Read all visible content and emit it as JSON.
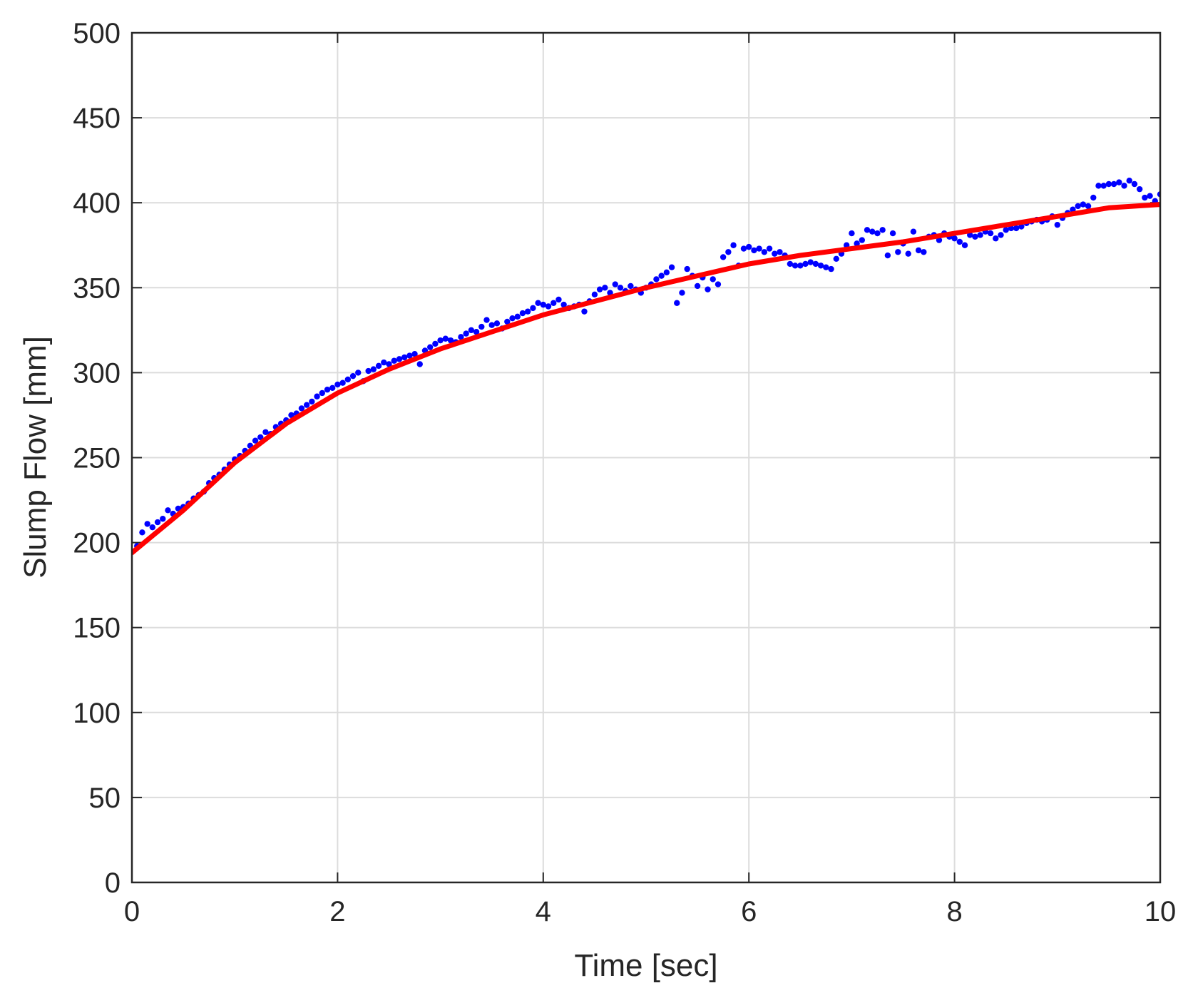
{
  "chart_data": {
    "type": "scatter",
    "title": "",
    "xlabel": "Time [sec]",
    "ylabel": "Slump Flow  [mm]",
    "xlim": [
      0,
      10
    ],
    "ylim": [
      0,
      500
    ],
    "x_ticks": [
      "0",
      "2",
      "4",
      "6",
      "8",
      "10"
    ],
    "y_ticks": [
      "0",
      "50",
      "100",
      "150",
      "200",
      "250",
      "300",
      "350",
      "400",
      "450",
      "500"
    ],
    "grid": true,
    "legend": "none",
    "series": [
      {
        "kind": "scatter",
        "color": "#0000ff",
        "points": [
          [
            0.05,
            198
          ],
          [
            0.1,
            206
          ],
          [
            0.15,
            211
          ],
          [
            0.2,
            209
          ],
          [
            0.25,
            212
          ],
          [
            0.3,
            214
          ],
          [
            0.35,
            219
          ],
          [
            0.4,
            217
          ],
          [
            0.45,
            220
          ],
          [
            0.5,
            221
          ],
          [
            0.55,
            223
          ],
          [
            0.6,
            226
          ],
          [
            0.65,
            228
          ],
          [
            0.7,
            230
          ],
          [
            0.75,
            235
          ],
          [
            0.8,
            238
          ],
          [
            0.85,
            240
          ],
          [
            0.9,
            243
          ],
          [
            0.95,
            246
          ],
          [
            1.0,
            249
          ],
          [
            1.05,
            251
          ],
          [
            1.1,
            254
          ],
          [
            1.15,
            257
          ],
          [
            1.2,
            260
          ],
          [
            1.25,
            262
          ],
          [
            1.3,
            265
          ],
          [
            1.35,
            264
          ],
          [
            1.4,
            268
          ],
          [
            1.45,
            270
          ],
          [
            1.5,
            272
          ],
          [
            1.55,
            275
          ],
          [
            1.6,
            276
          ],
          [
            1.65,
            279
          ],
          [
            1.7,
            281
          ],
          [
            1.75,
            283
          ],
          [
            1.8,
            286
          ],
          [
            1.85,
            288
          ],
          [
            1.9,
            290
          ],
          [
            1.95,
            291
          ],
          [
            2.0,
            293
          ],
          [
            2.05,
            294
          ],
          [
            2.1,
            296
          ],
          [
            2.15,
            298
          ],
          [
            2.2,
            300
          ],
          [
            2.25,
            295
          ],
          [
            2.3,
            301
          ],
          [
            2.35,
            302
          ],
          [
            2.4,
            304
          ],
          [
            2.45,
            306
          ],
          [
            2.5,
            305
          ],
          [
            2.55,
            307
          ],
          [
            2.6,
            308
          ],
          [
            2.65,
            309
          ],
          [
            2.7,
            310
          ],
          [
            2.75,
            311
          ],
          [
            2.8,
            305
          ],
          [
            2.85,
            313
          ],
          [
            2.9,
            315
          ],
          [
            2.95,
            317
          ],
          [
            3.0,
            319
          ],
          [
            3.05,
            320
          ],
          [
            3.1,
            319
          ],
          [
            3.15,
            318
          ],
          [
            3.2,
            321
          ],
          [
            3.25,
            323
          ],
          [
            3.3,
            325
          ],
          [
            3.35,
            324
          ],
          [
            3.4,
            327
          ],
          [
            3.45,
            331
          ],
          [
            3.5,
            328
          ],
          [
            3.55,
            329
          ],
          [
            3.6,
            326
          ],
          [
            3.65,
            330
          ],
          [
            3.7,
            332
          ],
          [
            3.75,
            333
          ],
          [
            3.8,
            335
          ],
          [
            3.85,
            336
          ],
          [
            3.9,
            338
          ],
          [
            3.95,
            341
          ],
          [
            4.0,
            340
          ],
          [
            4.05,
            339
          ],
          [
            4.1,
            341
          ],
          [
            4.15,
            343
          ],
          [
            4.2,
            340
          ],
          [
            4.25,
            338
          ],
          [
            4.3,
            339
          ],
          [
            4.35,
            340
          ],
          [
            4.4,
            336
          ],
          [
            4.45,
            342
          ],
          [
            4.5,
            346
          ],
          [
            4.55,
            349
          ],
          [
            4.6,
            350
          ],
          [
            4.65,
            347
          ],
          [
            4.7,
            352
          ],
          [
            4.75,
            350
          ],
          [
            4.8,
            348
          ],
          [
            4.85,
            351
          ],
          [
            4.9,
            349
          ],
          [
            4.95,
            347
          ],
          [
            5.0,
            350
          ],
          [
            5.05,
            352
          ],
          [
            5.1,
            355
          ],
          [
            5.15,
            357
          ],
          [
            5.2,
            359
          ],
          [
            5.25,
            362
          ],
          [
            5.3,
            341
          ],
          [
            5.35,
            347
          ],
          [
            5.4,
            361
          ],
          [
            5.45,
            357
          ],
          [
            5.5,
            351
          ],
          [
            5.55,
            356
          ],
          [
            5.6,
            349
          ],
          [
            5.65,
            355
          ],
          [
            5.7,
            352
          ],
          [
            5.75,
            368
          ],
          [
            5.8,
            371
          ],
          [
            5.85,
            375
          ],
          [
            5.9,
            363
          ],
          [
            5.95,
            373
          ],
          [
            6.0,
            374
          ],
          [
            6.05,
            372
          ],
          [
            6.1,
            373
          ],
          [
            6.15,
            371
          ],
          [
            6.2,
            373
          ],
          [
            6.25,
            370
          ],
          [
            6.3,
            371
          ],
          [
            6.35,
            369
          ],
          [
            6.4,
            364
          ],
          [
            6.45,
            363
          ],
          [
            6.5,
            363
          ],
          [
            6.55,
            364
          ],
          [
            6.6,
            365
          ],
          [
            6.65,
            364
          ],
          [
            6.7,
            363
          ],
          [
            6.75,
            362
          ],
          [
            6.8,
            361
          ],
          [
            6.85,
            367
          ],
          [
            6.9,
            370
          ],
          [
            6.95,
            375
          ],
          [
            7.0,
            382
          ],
          [
            7.05,
            376
          ],
          [
            7.1,
            378
          ],
          [
            7.15,
            384
          ],
          [
            7.2,
            383
          ],
          [
            7.25,
            382
          ],
          [
            7.3,
            384
          ],
          [
            7.35,
            369
          ],
          [
            7.4,
            382
          ],
          [
            7.45,
            371
          ],
          [
            7.5,
            376
          ],
          [
            7.55,
            370
          ],
          [
            7.6,
            383
          ],
          [
            7.65,
            372
          ],
          [
            7.7,
            371
          ],
          [
            7.75,
            380
          ],
          [
            7.8,
            381
          ],
          [
            7.85,
            378
          ],
          [
            7.9,
            382
          ],
          [
            7.95,
            380
          ],
          [
            8.0,
            379
          ],
          [
            8.05,
            377
          ],
          [
            8.1,
            375
          ],
          [
            8.15,
            381
          ],
          [
            8.2,
            380
          ],
          [
            8.25,
            381
          ],
          [
            8.3,
            383
          ],
          [
            8.35,
            382
          ],
          [
            8.4,
            379
          ],
          [
            8.45,
            381
          ],
          [
            8.5,
            384
          ],
          [
            8.55,
            385
          ],
          [
            8.6,
            385
          ],
          [
            8.65,
            386
          ],
          [
            8.7,
            388
          ],
          [
            8.75,
            389
          ],
          [
            8.8,
            390
          ],
          [
            8.85,
            389
          ],
          [
            8.9,
            390
          ],
          [
            8.95,
            392
          ],
          [
            9.0,
            387
          ],
          [
            9.05,
            391
          ],
          [
            9.1,
            394
          ],
          [
            9.15,
            396
          ],
          [
            9.2,
            398
          ],
          [
            9.25,
            399
          ],
          [
            9.3,
            398
          ],
          [
            9.35,
            403
          ],
          [
            9.4,
            410
          ],
          [
            9.45,
            410
          ],
          [
            9.5,
            411
          ],
          [
            9.55,
            411
          ],
          [
            9.6,
            412
          ],
          [
            9.65,
            410
          ],
          [
            9.7,
            413
          ],
          [
            9.75,
            411
          ],
          [
            9.8,
            408
          ],
          [
            9.85,
            403
          ],
          [
            9.9,
            404
          ],
          [
            9.95,
            401
          ],
          [
            10.0,
            405
          ]
        ]
      },
      {
        "kind": "line",
        "color": "#ff0000",
        "points": [
          [
            0,
            194
          ],
          [
            0.5,
            219
          ],
          [
            1,
            247
          ],
          [
            1.5,
            270
          ],
          [
            2,
            288
          ],
          [
            2.5,
            302
          ],
          [
            3,
            314
          ],
          [
            3.5,
            324
          ],
          [
            4,
            334
          ],
          [
            4.5,
            342
          ],
          [
            5,
            350
          ],
          [
            5.5,
            357
          ],
          [
            6,
            364
          ],
          [
            6.5,
            369
          ],
          [
            7,
            373
          ],
          [
            7.5,
            377
          ],
          [
            8,
            382
          ],
          [
            8.5,
            387
          ],
          [
            9,
            392
          ],
          [
            9.5,
            397
          ],
          [
            10,
            399
          ]
        ]
      }
    ]
  }
}
